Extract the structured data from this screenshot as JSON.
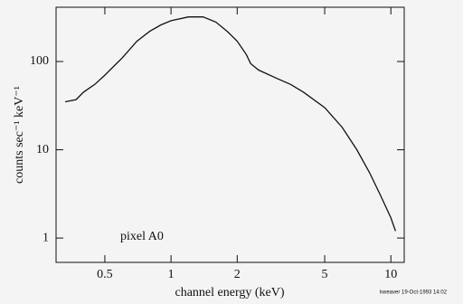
{
  "chart_data": {
    "type": "line",
    "xlabel": "channel energy (keV)",
    "ylabel": "counts sec⁻¹ keV⁻¹",
    "annotation": "pixel A0",
    "footer": "kweaver 19-Oct-1993 14:02",
    "xscale": "log",
    "yscale": "log",
    "xlim": [
      0.3,
      11.5
    ],
    "ylim": [
      0.53,
      412
    ],
    "xticks": [
      0.5,
      1,
      2,
      5,
      10
    ],
    "yticks": [
      1,
      10,
      100
    ],
    "series": [
      {
        "color": "#111111",
        "x": [
          0.33,
          0.37,
          0.4,
          0.45,
          0.5,
          0.6,
          0.7,
          0.8,
          0.9,
          1.0,
          1.2,
          1.4,
          1.6,
          1.8,
          2.0,
          2.2,
          2.3,
          2.5,
          3.0,
          3.5,
          4.0,
          5.0,
          6.0,
          7.0,
          8.0,
          9.0,
          10.0,
          10.5
        ],
        "values": [
          35,
          37,
          45,
          55,
          70,
          110,
          170,
          220,
          260,
          290,
          320,
          320,
          280,
          220,
          170,
          120,
          95,
          80,
          65,
          55,
          45,
          30,
          18,
          10,
          5.5,
          3,
          1.7,
          1.2
        ]
      }
    ]
  }
}
